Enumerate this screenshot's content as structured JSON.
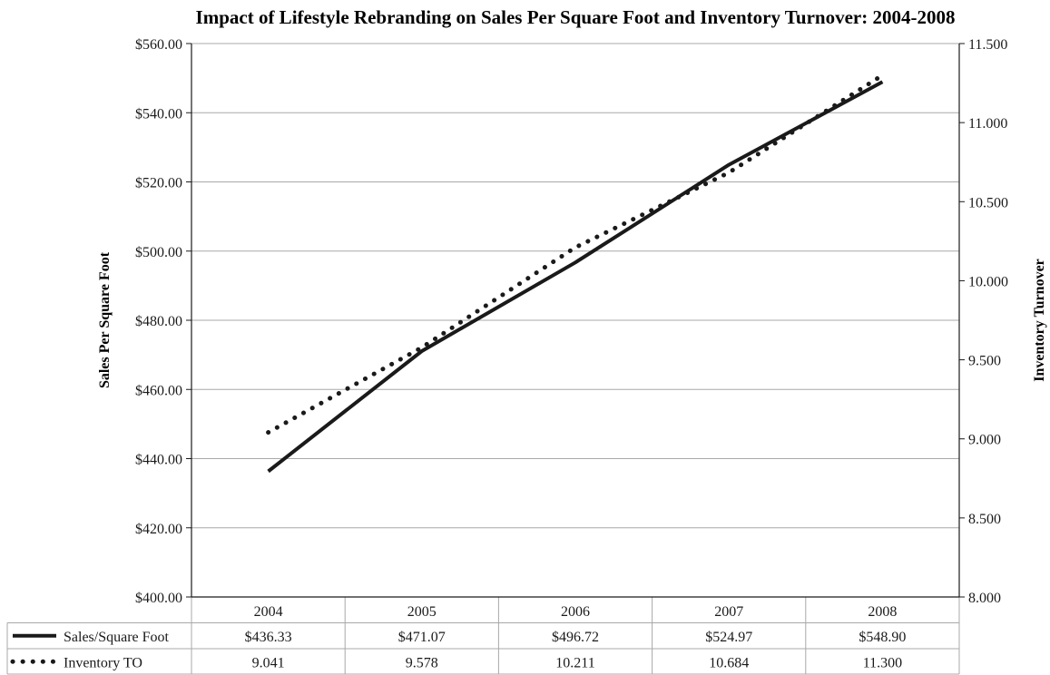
{
  "chart_data": {
    "type": "line",
    "title": "Impact of Lifestyle Rebranding on Sales Per Square Foot and Inventory Turnover: 2004-2008",
    "categories": [
      "2004",
      "2005",
      "2006",
      "2007",
      "2008"
    ],
    "y_left": {
      "label": "Sales Per Square Foot",
      "range": [
        400,
        560
      ],
      "ticks": [
        "$400.00",
        "$420.00",
        "$440.00",
        "$460.00",
        "$480.00",
        "$500.00",
        "$520.00",
        "$540.00",
        "$560.00"
      ],
      "grid": true
    },
    "y_right": {
      "label": "Inventory Turnover",
      "range": [
        8.0,
        11.5
      ],
      "ticks": [
        "8.000",
        "8.500",
        "9.000",
        "9.500",
        "10.000",
        "10.500",
        "11.000",
        "11.500"
      ]
    },
    "series": [
      {
        "name": "Sales/Square Foot",
        "axis": "left",
        "style": "solid",
        "color": "#1a1a1a",
        "values": [
          436.33,
          471.07,
          496.72,
          524.97,
          548.9
        ],
        "labels": [
          "$436.33",
          "$471.07",
          "$496.72",
          "$524.97",
          "$548.90"
        ]
      },
      {
        "name": "Inventory TO",
        "axis": "right",
        "style": "dotted",
        "color": "#1a1a1a",
        "values": [
          9.041,
          9.578,
          10.211,
          10.684,
          11.3
        ],
        "labels": [
          "9.041",
          "9.578",
          "10.211",
          "10.684",
          "11.300"
        ]
      }
    ],
    "data_table": true
  }
}
